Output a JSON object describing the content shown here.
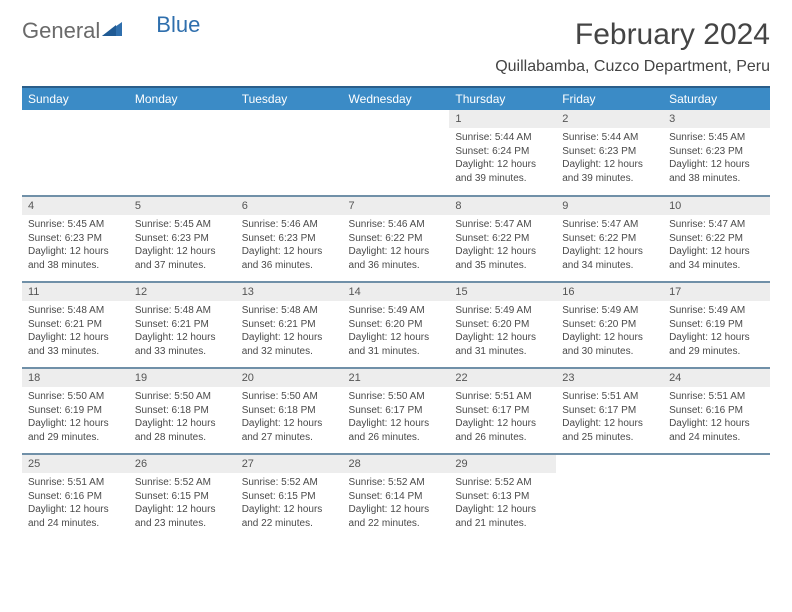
{
  "brand": {
    "part1": "General",
    "part2": "Blue"
  },
  "title": "February 2024",
  "location": "Quillabamba, Cuzco Department, Peru",
  "colors": {
    "header_bg": "#3b8bc6",
    "header_border": "#2a5e8a",
    "row_border": "#7090a8",
    "daynum_bg": "#ededed",
    "brand_gray": "#6a6a6a",
    "brand_blue": "#2f6fad"
  },
  "weekdays": [
    "Sunday",
    "Monday",
    "Tuesday",
    "Wednesday",
    "Thursday",
    "Friday",
    "Saturday"
  ],
  "first_weekday_index": 4,
  "days": [
    {
      "n": 1,
      "sunrise": "5:44 AM",
      "sunset": "6:24 PM",
      "dl": "12 hours and 39 minutes."
    },
    {
      "n": 2,
      "sunrise": "5:44 AM",
      "sunset": "6:23 PM",
      "dl": "12 hours and 39 minutes."
    },
    {
      "n": 3,
      "sunrise": "5:45 AM",
      "sunset": "6:23 PM",
      "dl": "12 hours and 38 minutes."
    },
    {
      "n": 4,
      "sunrise": "5:45 AM",
      "sunset": "6:23 PM",
      "dl": "12 hours and 38 minutes."
    },
    {
      "n": 5,
      "sunrise": "5:45 AM",
      "sunset": "6:23 PM",
      "dl": "12 hours and 37 minutes."
    },
    {
      "n": 6,
      "sunrise": "5:46 AM",
      "sunset": "6:23 PM",
      "dl": "12 hours and 36 minutes."
    },
    {
      "n": 7,
      "sunrise": "5:46 AM",
      "sunset": "6:22 PM",
      "dl": "12 hours and 36 minutes."
    },
    {
      "n": 8,
      "sunrise": "5:47 AM",
      "sunset": "6:22 PM",
      "dl": "12 hours and 35 minutes."
    },
    {
      "n": 9,
      "sunrise": "5:47 AM",
      "sunset": "6:22 PM",
      "dl": "12 hours and 34 minutes."
    },
    {
      "n": 10,
      "sunrise": "5:47 AM",
      "sunset": "6:22 PM",
      "dl": "12 hours and 34 minutes."
    },
    {
      "n": 11,
      "sunrise": "5:48 AM",
      "sunset": "6:21 PM",
      "dl": "12 hours and 33 minutes."
    },
    {
      "n": 12,
      "sunrise": "5:48 AM",
      "sunset": "6:21 PM",
      "dl": "12 hours and 33 minutes."
    },
    {
      "n": 13,
      "sunrise": "5:48 AM",
      "sunset": "6:21 PM",
      "dl": "12 hours and 32 minutes."
    },
    {
      "n": 14,
      "sunrise": "5:49 AM",
      "sunset": "6:20 PM",
      "dl": "12 hours and 31 minutes."
    },
    {
      "n": 15,
      "sunrise": "5:49 AM",
      "sunset": "6:20 PM",
      "dl": "12 hours and 31 minutes."
    },
    {
      "n": 16,
      "sunrise": "5:49 AM",
      "sunset": "6:20 PM",
      "dl": "12 hours and 30 minutes."
    },
    {
      "n": 17,
      "sunrise": "5:49 AM",
      "sunset": "6:19 PM",
      "dl": "12 hours and 29 minutes."
    },
    {
      "n": 18,
      "sunrise": "5:50 AM",
      "sunset": "6:19 PM",
      "dl": "12 hours and 29 minutes."
    },
    {
      "n": 19,
      "sunrise": "5:50 AM",
      "sunset": "6:18 PM",
      "dl": "12 hours and 28 minutes."
    },
    {
      "n": 20,
      "sunrise": "5:50 AM",
      "sunset": "6:18 PM",
      "dl": "12 hours and 27 minutes."
    },
    {
      "n": 21,
      "sunrise": "5:50 AM",
      "sunset": "6:17 PM",
      "dl": "12 hours and 26 minutes."
    },
    {
      "n": 22,
      "sunrise": "5:51 AM",
      "sunset": "6:17 PM",
      "dl": "12 hours and 26 minutes."
    },
    {
      "n": 23,
      "sunrise": "5:51 AM",
      "sunset": "6:17 PM",
      "dl": "12 hours and 25 minutes."
    },
    {
      "n": 24,
      "sunrise": "5:51 AM",
      "sunset": "6:16 PM",
      "dl": "12 hours and 24 minutes."
    },
    {
      "n": 25,
      "sunrise": "5:51 AM",
      "sunset": "6:16 PM",
      "dl": "12 hours and 24 minutes."
    },
    {
      "n": 26,
      "sunrise": "5:52 AM",
      "sunset": "6:15 PM",
      "dl": "12 hours and 23 minutes."
    },
    {
      "n": 27,
      "sunrise": "5:52 AM",
      "sunset": "6:15 PM",
      "dl": "12 hours and 22 minutes."
    },
    {
      "n": 28,
      "sunrise": "5:52 AM",
      "sunset": "6:14 PM",
      "dl": "12 hours and 22 minutes."
    },
    {
      "n": 29,
      "sunrise": "5:52 AM",
      "sunset": "6:13 PM",
      "dl": "12 hours and 21 minutes."
    }
  ],
  "labels": {
    "sunrise": "Sunrise:",
    "sunset": "Sunset:",
    "daylight": "Daylight:"
  }
}
